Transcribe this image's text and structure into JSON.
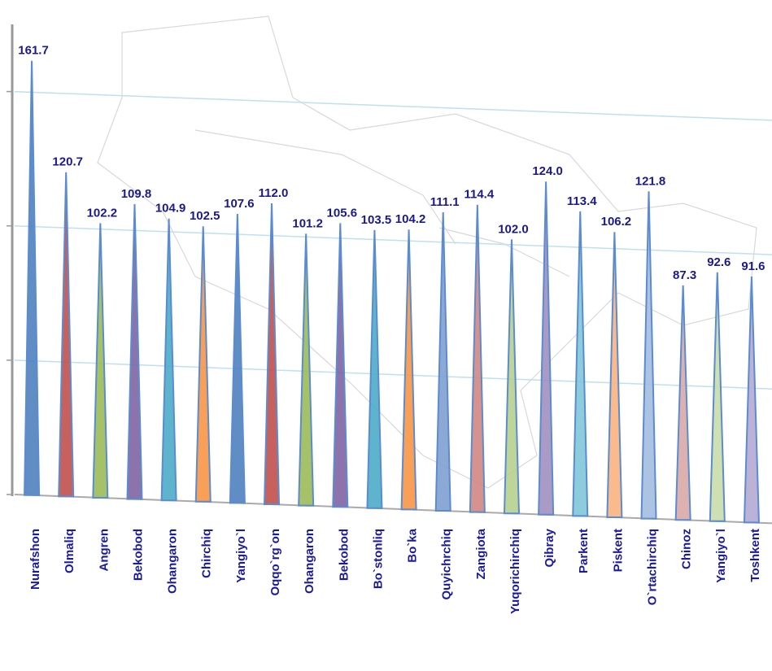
{
  "chart_data": {
    "type": "bar",
    "categories": [
      "Nurafshon",
      "Olmaliq",
      "Angren",
      "Bekobod",
      "Ohangaron",
      "Chirchiq",
      "Yangiyo`l",
      "Oqqo`rg`on",
      "Ohangaron",
      "Bekobod",
      "Bo`stonliq",
      "Bo`ka",
      "Quyichrchiq",
      "Zangiota",
      "Yuqorichirchiq",
      "Qibray",
      "Parkent",
      "Piskent",
      "O`rtachirchiq",
      "Chinoz",
      "Yangiyo`l",
      "Toshkent"
    ],
    "values": [
      161.7,
      120.7,
      102.2,
      109.8,
      104.9,
      102.5,
      107.6,
      112.0,
      101.2,
      105.6,
      103.5,
      104.2,
      111.1,
      114.4,
      102.0,
      124.0,
      113.4,
      106.2,
      121.8,
      87.3,
      92.6,
      91.6
    ],
    "value_labels": [
      "161.7",
      "120.7",
      "102.2",
      "109.8",
      "104.9",
      "102.5",
      "107.6",
      "112.0",
      "101.2",
      "105.6",
      "103.5",
      "104.2",
      "111.1",
      "114.4",
      "102.0",
      "124.0",
      "113.4",
      "106.2",
      "121.8",
      "87.3",
      "92.6",
      "91.6"
    ],
    "colors": [
      "#4f81bd",
      "#c0504d",
      "#9bbb59",
      "#8064a2",
      "#4bacc6",
      "#f79646",
      "#4f81bd",
      "#c0504d",
      "#9bbb59",
      "#8064a2",
      "#4bacc6",
      "#f79646",
      "#7f9fd0",
      "#d08682",
      "#b7d08f",
      "#a08fc0",
      "#7fc6d9",
      "#f9b27f",
      "#a4bde0",
      "#d9a8a6",
      "#c9dca8",
      "#b5a8d3"
    ],
    "ylim": [
      0,
      175
    ],
    "yticks": [
      0,
      50,
      100,
      150
    ],
    "grid": true
  }
}
